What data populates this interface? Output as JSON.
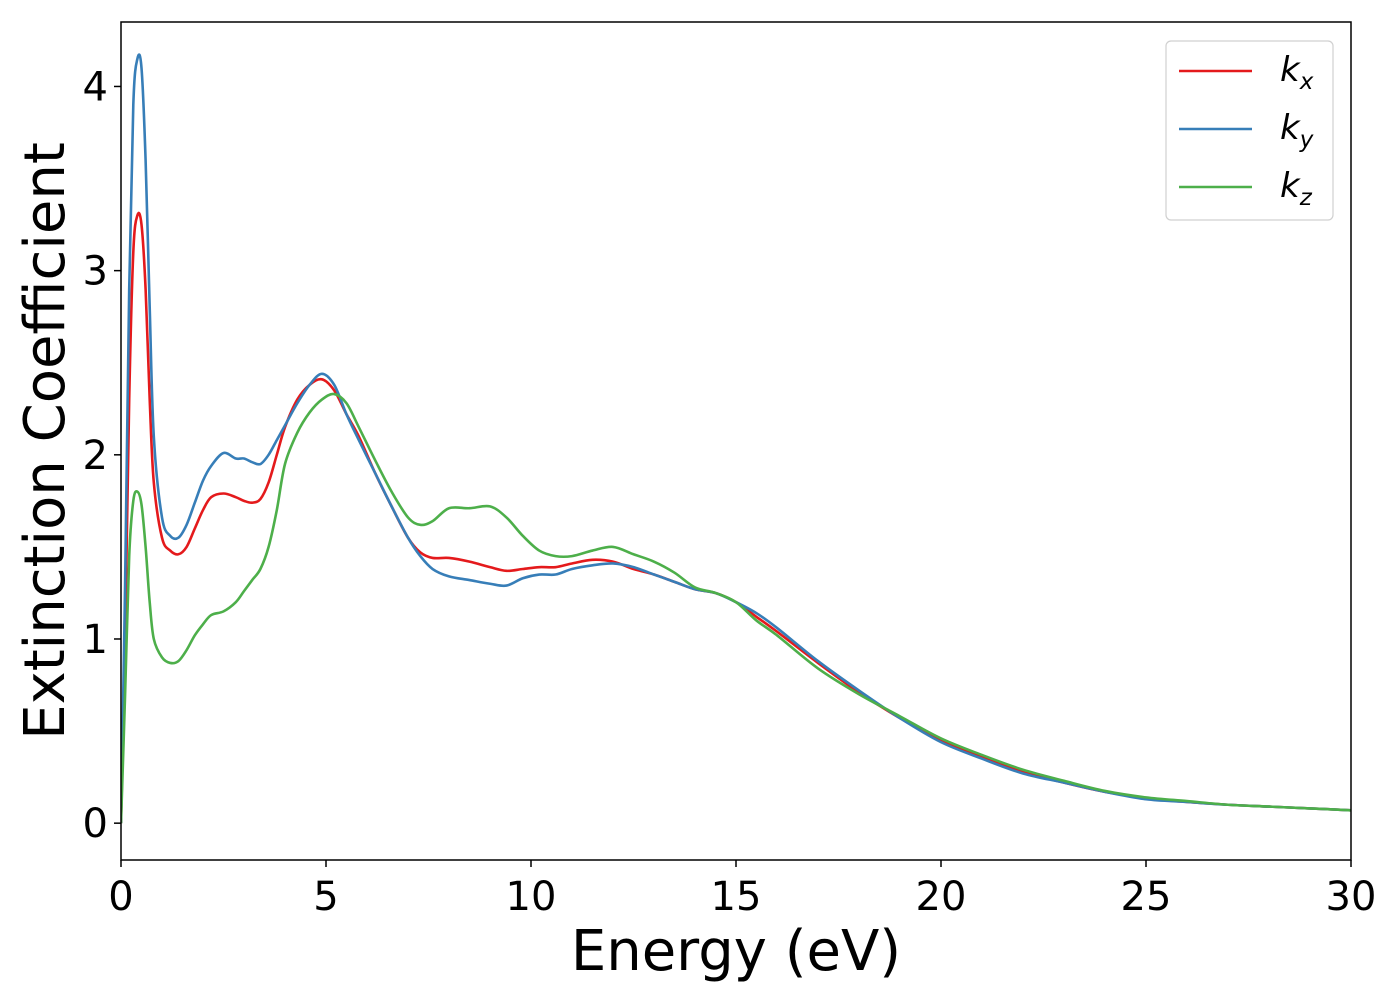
{
  "chart_data": {
    "type": "line",
    "title": "",
    "xlabel": "Energy (eV)",
    "ylabel": "Extinction Coefficient",
    "xlim": [
      0,
      30
    ],
    "ylim": [
      -0.2,
      4.35
    ],
    "xticks": [
      "0",
      "5",
      "10",
      "15",
      "20",
      "25",
      "30"
    ],
    "yticks": [
      "0",
      "1",
      "2",
      "3",
      "4"
    ],
    "grid": false,
    "legend_position": "top-right",
    "series": [
      {
        "name": "k",
        "subscript": "x",
        "color": "#e41a1c",
        "x": [
          0,
          0.1,
          0.2,
          0.3,
          0.4,
          0.5,
          0.6,
          0.7,
          0.8,
          1.0,
          1.2,
          1.4,
          1.6,
          1.8,
          2.0,
          2.2,
          2.5,
          2.8,
          3.0,
          3.2,
          3.4,
          3.6,
          3.8,
          4.0,
          4.3,
          4.6,
          4.9,
          5.2,
          5.5,
          5.8,
          6.2,
          6.6,
          7.0,
          7.3,
          7.6,
          8.0,
          8.5,
          9.0,
          9.4,
          9.8,
          10.2,
          10.6,
          11.0,
          11.5,
          12.0,
          12.5,
          13.0,
          13.5,
          14.0,
          14.5,
          15.0,
          15.5,
          16.0,
          17.0,
          18.0,
          19.0,
          20.0,
          21.0,
          22.0,
          23.0,
          24.0,
          25.0,
          26.0,
          27.0,
          28.0,
          29.0,
          30.0
        ],
        "y": [
          0,
          1.0,
          2.3,
          3.1,
          3.3,
          3.25,
          2.9,
          2.3,
          1.85,
          1.55,
          1.48,
          1.46,
          1.5,
          1.6,
          1.7,
          1.77,
          1.79,
          1.77,
          1.75,
          1.74,
          1.76,
          1.85,
          2.0,
          2.15,
          2.3,
          2.38,
          2.41,
          2.35,
          2.22,
          2.1,
          1.9,
          1.72,
          1.55,
          1.47,
          1.44,
          1.44,
          1.42,
          1.39,
          1.37,
          1.38,
          1.39,
          1.39,
          1.41,
          1.43,
          1.42,
          1.38,
          1.35,
          1.31,
          1.27,
          1.25,
          1.2,
          1.12,
          1.04,
          0.87,
          0.71,
          0.57,
          0.45,
          0.36,
          0.28,
          0.22,
          0.17,
          0.135,
          0.115,
          0.1,
          0.09,
          0.08,
          0.07
        ]
      },
      {
        "name": "k",
        "subscript": "y",
        "color": "#377eb8",
        "x": [
          0,
          0.1,
          0.2,
          0.3,
          0.4,
          0.5,
          0.6,
          0.7,
          0.8,
          1.0,
          1.2,
          1.4,
          1.6,
          1.8,
          2.0,
          2.2,
          2.5,
          2.8,
          3.0,
          3.2,
          3.4,
          3.6,
          3.8,
          4.0,
          4.3,
          4.6,
          4.9,
          5.2,
          5.5,
          5.8,
          6.2,
          6.6,
          7.0,
          7.3,
          7.6,
          8.0,
          8.5,
          9.0,
          9.4,
          9.8,
          10.2,
          10.6,
          11.0,
          11.5,
          12.0,
          12.5,
          13.0,
          13.5,
          14.0,
          14.5,
          15.0,
          15.5,
          16.0,
          17.0,
          18.0,
          19.0,
          20.0,
          21.0,
          22.0,
          23.0,
          24.0,
          25.0,
          26.0,
          27.0,
          28.0,
          29.0,
          30.0
        ],
        "y": [
          0,
          1.3,
          2.9,
          3.9,
          4.15,
          4.1,
          3.6,
          2.8,
          2.1,
          1.66,
          1.56,
          1.55,
          1.62,
          1.74,
          1.86,
          1.94,
          2.01,
          1.98,
          1.98,
          1.96,
          1.95,
          2.0,
          2.08,
          2.16,
          2.28,
          2.38,
          2.44,
          2.38,
          2.22,
          2.08,
          1.9,
          1.72,
          1.55,
          1.45,
          1.38,
          1.34,
          1.32,
          1.3,
          1.29,
          1.33,
          1.35,
          1.35,
          1.38,
          1.4,
          1.41,
          1.39,
          1.35,
          1.31,
          1.27,
          1.25,
          1.2,
          1.14,
          1.06,
          0.88,
          0.72,
          0.57,
          0.44,
          0.35,
          0.27,
          0.22,
          0.17,
          0.13,
          0.115,
          0.1,
          0.09,
          0.08,
          0.07
        ]
      },
      {
        "name": "k",
        "subscript": "z",
        "color": "#4daf4a",
        "x": [
          0,
          0.1,
          0.2,
          0.3,
          0.4,
          0.5,
          0.6,
          0.7,
          0.8,
          1.0,
          1.2,
          1.4,
          1.6,
          1.8,
          2.0,
          2.2,
          2.5,
          2.8,
          3.0,
          3.2,
          3.4,
          3.6,
          3.8,
          4.0,
          4.3,
          4.6,
          4.9,
          5.2,
          5.5,
          5.8,
          6.2,
          6.6,
          7.0,
          7.3,
          7.6,
          8.0,
          8.5,
          9.0,
          9.4,
          9.8,
          10.2,
          10.6,
          11.0,
          11.5,
          12.0,
          12.5,
          13.0,
          13.5,
          14.0,
          14.5,
          15.0,
          15.5,
          16.0,
          17.0,
          18.0,
          19.0,
          20.0,
          21.0,
          22.0,
          23.0,
          24.0,
          25.0,
          26.0,
          27.0,
          28.0,
          29.0,
          30.0
        ],
        "y": [
          0,
          0.7,
          1.45,
          1.75,
          1.8,
          1.73,
          1.5,
          1.2,
          1.0,
          0.9,
          0.87,
          0.88,
          0.94,
          1.02,
          1.08,
          1.13,
          1.15,
          1.2,
          1.26,
          1.32,
          1.38,
          1.5,
          1.7,
          1.95,
          2.12,
          2.23,
          2.3,
          2.33,
          2.28,
          2.15,
          1.97,
          1.8,
          1.66,
          1.62,
          1.64,
          1.71,
          1.71,
          1.72,
          1.66,
          1.56,
          1.48,
          1.45,
          1.45,
          1.48,
          1.5,
          1.46,
          1.42,
          1.36,
          1.28,
          1.25,
          1.2,
          1.1,
          1.02,
          0.84,
          0.7,
          0.58,
          0.46,
          0.37,
          0.29,
          0.23,
          0.175,
          0.14,
          0.12,
          0.1,
          0.09,
          0.08,
          0.07
        ]
      }
    ]
  }
}
